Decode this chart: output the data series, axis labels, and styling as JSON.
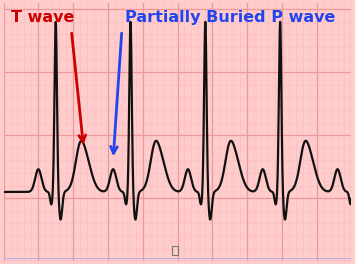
{
  "background_color": "#FFCCCC",
  "grid_major_color": "#EE9999",
  "grid_minor_color": "#FFBBBB",
  "ecg_color": "#111111",
  "ecg_linewidth": 1.6,
  "text_t_wave": "T wave",
  "text_p_wave": "Partially Buried P wave",
  "text_t_color": "#CC0000",
  "text_p_color": "#2244EE",
  "text_fontsize": 11.5,
  "figsize": [
    3.55,
    2.64
  ],
  "dpi": 100,
  "ylim": [
    -0.55,
    1.5
  ],
  "xlim": [
    0,
    2.0
  ]
}
